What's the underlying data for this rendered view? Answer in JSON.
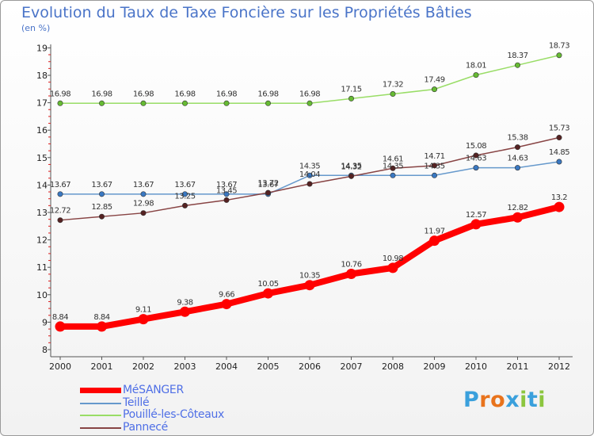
{
  "title": "Evolution du Taux de Taxe Foncière sur les Propriétés Bâties",
  "unit_label": "(en %)",
  "logo": {
    "letters": [
      "P",
      "r",
      "o",
      "x",
      "i",
      "t",
      "i"
    ],
    "colors": [
      "#3aa0dc",
      "#e8731c",
      "#e8731c",
      "#3aa0dc",
      "#8cc63f",
      "#3aa0dc",
      "#8cc63f"
    ]
  },
  "chart_data": {
    "type": "line",
    "title": "Evolution du Taux de Taxe Foncière sur les Propriétés Bâties",
    "ylabel": "(en %)",
    "xlabel": "",
    "x": [
      "2000",
      "2001",
      "2002",
      "2003",
      "2004",
      "2005",
      "2006",
      "2007",
      "2008",
      "2009",
      "2010",
      "2011",
      "2012"
    ],
    "ylim": [
      8,
      19
    ],
    "yticks": [
      8,
      9,
      10,
      11,
      12,
      13,
      14,
      15,
      16,
      17,
      18,
      19
    ],
    "grid": false,
    "legend_position": "bottom-left",
    "series": [
      {
        "name": "MéSANGER",
        "color": "#ff0000",
        "emphasis": true,
        "values": [
          8.84,
          8.84,
          9.11,
          9.38,
          9.66,
          10.05,
          10.35,
          10.76,
          10.98,
          11.97,
          12.57,
          12.82,
          13.2
        ],
        "labels": [
          "8.84",
          "8.84",
          "9.11",
          "9.38",
          "9.66",
          "10.05",
          "10.35",
          "10.76",
          "10.98",
          "11.97",
          "12.57",
          "12.82",
          "13.2"
        ]
      },
      {
        "name": "Teillé",
        "color": "#6699cc",
        "marker_color": "#3a78c2",
        "values": [
          13.67,
          13.67,
          13.67,
          13.67,
          13.67,
          13.67,
          14.35,
          14.35,
          14.35,
          14.35,
          14.63,
          14.63,
          14.85
        ],
        "labels": [
          "13.67",
          "13.67",
          "13.67",
          "13.67",
          "13.67",
          "13.67",
          "14.35",
          "14.35",
          "14.35",
          "14.35",
          "14.63",
          "14.63",
          "14.85"
        ]
      },
      {
        "name": "Pouillé-les-Côteaux",
        "color": "#99dd66",
        "marker_color": "#66bb33",
        "values": [
          16.98,
          16.98,
          16.98,
          16.98,
          16.98,
          16.98,
          16.98,
          17.15,
          17.32,
          17.49,
          18.01,
          18.37,
          18.73
        ],
        "labels": [
          "16.98",
          "16.98",
          "16.98",
          "16.98",
          "16.98",
          "16.98",
          "16.98",
          "17.15",
          "17.32",
          "17.49",
          "18.01",
          "18.37",
          "18.73"
        ]
      },
      {
        "name": "Pannecé",
        "color": "#884444",
        "marker_color": "#552222",
        "values": [
          12.72,
          12.85,
          12.98,
          13.25,
          13.45,
          13.72,
          14.04,
          14.32,
          14.61,
          14.71,
          15.08,
          15.38,
          15.73
        ],
        "labels": [
          "12.72",
          "12.85",
          "12.98",
          "13.25",
          "13.45",
          "13.72",
          "14.04",
          "14.32",
          "14.61",
          "14.71",
          "15.08",
          "15.38",
          "15.73"
        ]
      }
    ]
  }
}
